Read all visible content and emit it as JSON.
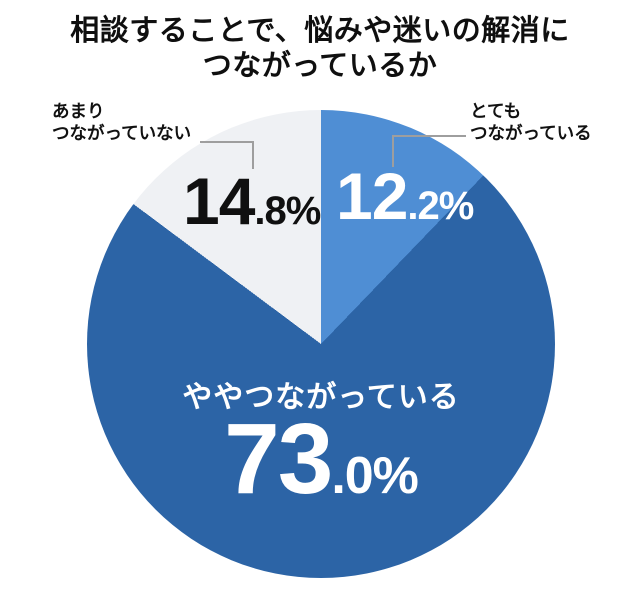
{
  "title": {
    "line1": "相談することで、悩みや迷いの解消に",
    "line2": "つながっているか"
  },
  "chart_data": {
    "type": "pie",
    "title": "相談することで、悩みや迷いの解消につながっているか",
    "unit": "%",
    "direction": "clockwise",
    "start_angle_deg": 0,
    "slices": [
      {
        "label": "とてもつながっている",
        "value": 12.2,
        "color": "#4f8ed4"
      },
      {
        "label": "ややつながっている",
        "value": 73.0,
        "color": "#2c64a6"
      },
      {
        "label": "あまりつながっていない",
        "value": 14.8,
        "color": "#eff1f4"
      }
    ],
    "legend": "none",
    "colors": {
      "background": "#ffffff",
      "title_text": "#0f0f0f",
      "leader_line": "#9e9e9e",
      "value_on_blue": "#ffffff",
      "value_on_gray": "#101010"
    }
  },
  "callouts": {
    "very": {
      "line1": "とても",
      "line2": "つながっている",
      "value_int": "12",
      "value_frac": ".2%"
    },
    "not_much": {
      "line1": "あまり",
      "line2": "つながっていない",
      "value_int": "14",
      "value_frac": ".8%"
    },
    "somewhat": {
      "label": "ややつながっている",
      "value_int": "73",
      "value_frac": ".0%"
    }
  }
}
